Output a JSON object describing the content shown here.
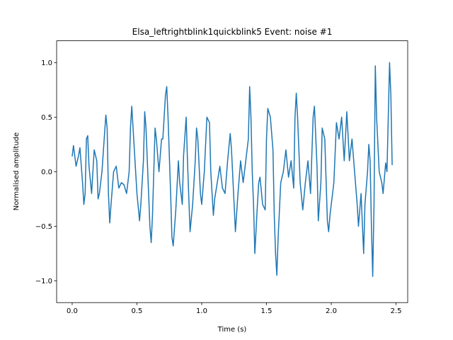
{
  "chart_data": {
    "type": "line",
    "title": "Elsa_leftrightblink1quickblink5 Event: noise #1",
    "x_label": "Time (s)",
    "y_label": "Normalised amplitude",
    "xlim": [
      -0.12,
      2.59
    ],
    "ylim": [
      -1.2,
      1.2
    ],
    "xticks": [
      {
        "value": 0,
        "label": "0.0"
      },
      {
        "value": 0.5,
        "label": "0.5"
      },
      {
        "value": 1,
        "label": "1.0"
      },
      {
        "value": 1.5,
        "label": "1.5"
      },
      {
        "value": 2,
        "label": "2.0"
      },
      {
        "value": 2.5,
        "label": "2.5"
      }
    ],
    "yticks": [
      {
        "value": -1,
        "label": "−1.0"
      },
      {
        "value": -0.5,
        "label": "−0.5"
      },
      {
        "value": 0,
        "label": "0.0"
      },
      {
        "value": 0.5,
        "label": "0.5"
      },
      {
        "value": 1,
        "label": "1.0"
      }
    ],
    "series": [
      {
        "color": "#1f77b4",
        "x": [
          0.0,
          0.01,
          0.03,
          0.05,
          0.06,
          0.08,
          0.09,
          0.1,
          0.11,
          0.12,
          0.13,
          0.15,
          0.17,
          0.19,
          0.2,
          0.21,
          0.23,
          0.25,
          0.26,
          0.27,
          0.28,
          0.29,
          0.3,
          0.32,
          0.34,
          0.36,
          0.38,
          0.4,
          0.42,
          0.44,
          0.45,
          0.46,
          0.48,
          0.5,
          0.52,
          0.53,
          0.55,
          0.56,
          0.57,
          0.59,
          0.6,
          0.61,
          0.62,
          0.63,
          0.64,
          0.65,
          0.67,
          0.69,
          0.7,
          0.72,
          0.73,
          0.74,
          0.76,
          0.77,
          0.78,
          0.8,
          0.82,
          0.83,
          0.85,
          0.86,
          0.88,
          0.89,
          0.91,
          0.93,
          0.95,
          0.96,
          0.97,
          0.99,
          1.0,
          1.02,
          1.04,
          1.06,
          1.07,
          1.09,
          1.1,
          1.12,
          1.14,
          1.16,
          1.18,
          1.2,
          1.22,
          1.23,
          1.25,
          1.26,
          1.28,
          1.3,
          1.32,
          1.34,
          1.36,
          1.37,
          1.38,
          1.39,
          1.4,
          1.41,
          1.43,
          1.44,
          1.45,
          1.47,
          1.49,
          1.5,
          1.51,
          1.53,
          1.55,
          1.56,
          1.57,
          1.58,
          1.59,
          1.61,
          1.63,
          1.65,
          1.67,
          1.69,
          1.71,
          1.72,
          1.73,
          1.74,
          1.76,
          1.78,
          1.8,
          1.82,
          1.84,
          1.86,
          1.87,
          1.89,
          1.9,
          1.92,
          1.93,
          1.95,
          1.97,
          1.98,
          1.99,
          2.0,
          2.02,
          2.04,
          2.06,
          2.08,
          2.1,
          2.12,
          2.14,
          2.16,
          2.18,
          2.2,
          2.21,
          2.23,
          2.25,
          2.26,
          2.28,
          2.29,
          2.3,
          2.31,
          2.32,
          2.33,
          2.34,
          2.35,
          2.37,
          2.39,
          2.4,
          2.42,
          2.43,
          2.45,
          2.46,
          2.47
        ],
        "values": [
          0.14,
          0.24,
          0.05,
          0.15,
          0.22,
          -0.1,
          -0.3,
          -0.2,
          0.3,
          0.33,
          0.05,
          -0.2,
          0.2,
          0.1,
          -0.25,
          -0.2,
          0.0,
          0.35,
          0.52,
          0.4,
          -0.2,
          -0.47,
          -0.3,
          0.0,
          0.05,
          -0.15,
          -0.1,
          -0.12,
          -0.2,
          0.0,
          0.4,
          0.6,
          0.2,
          -0.2,
          -0.45,
          -0.3,
          0.1,
          0.55,
          0.4,
          -0.2,
          -0.5,
          -0.65,
          -0.4,
          0.0,
          0.4,
          0.3,
          0.0,
          0.3,
          0.3,
          0.7,
          0.78,
          0.5,
          -0.2,
          -0.6,
          -0.68,
          -0.35,
          0.1,
          -0.1,
          -0.3,
          0.15,
          0.5,
          0.1,
          -0.55,
          -0.3,
          0.1,
          0.4,
          0.3,
          -0.2,
          -0.3,
          0.0,
          0.5,
          0.45,
          0.0,
          -0.4,
          -0.25,
          -0.1,
          0.05,
          -0.15,
          -0.2,
          0.1,
          0.35,
          0.2,
          -0.3,
          -0.55,
          -0.2,
          0.1,
          -0.1,
          0.1,
          0.3,
          0.78,
          0.5,
          0.0,
          -0.3,
          -0.75,
          -0.3,
          -0.1,
          -0.05,
          -0.3,
          -0.35,
          0.3,
          0.58,
          0.5,
          0.2,
          -0.4,
          -0.75,
          -0.95,
          -0.6,
          -0.1,
          0.0,
          0.2,
          -0.05,
          0.1,
          -0.15,
          0.5,
          0.72,
          0.5,
          -0.1,
          -0.35,
          -0.1,
          0.1,
          -0.2,
          0.5,
          0.6,
          0.05,
          -0.45,
          -0.1,
          0.4,
          0.3,
          -0.45,
          -0.55,
          -0.4,
          -0.3,
          -0.1,
          0.45,
          0.3,
          0.5,
          0.1,
          0.55,
          0.1,
          0.3,
          0.0,
          -0.3,
          -0.5,
          -0.2,
          -0.75,
          -0.3,
          0.0,
          0.25,
          0.1,
          -0.5,
          -0.96,
          -0.3,
          0.97,
          0.5,
          0.0,
          -0.1,
          -0.2,
          0.08,
          0.0,
          1.0,
          0.7,
          0.06
        ]
      }
    ]
  }
}
